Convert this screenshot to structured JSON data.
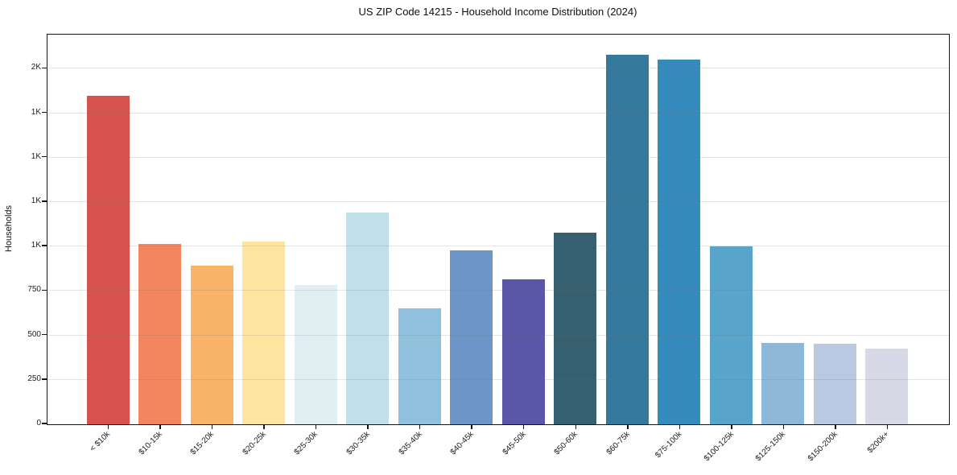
{
  "chart_data": {
    "type": "bar",
    "title": "US ZIP Code 14215 - Household Income Distribution (2024)",
    "xlabel": "",
    "ylabel": "Households",
    "categories": [
      "< $10k",
      "$10-15k",
      "$15-20k",
      "$20-25k",
      "$25-30k",
      "$30-35k",
      "$35-40k",
      "$40-45k",
      "$45-50k",
      "$50-60k",
      "$60-75k",
      "$75-100k",
      "$100-125k",
      "$125-150k",
      "$150-200k",
      "$200k+"
    ],
    "values": [
      1845,
      1010,
      890,
      1025,
      780,
      1190,
      650,
      975,
      815,
      1075,
      2075,
      2050,
      1000,
      455,
      450,
      425
    ],
    "bar_colors": [
      "#d6524c",
      "#f2875f",
      "#f9b469",
      "#fde5a0",
      "#e2eff2",
      "#c0dfe9",
      "#90c1dc",
      "#6d96c8",
      "#5a57a8",
      "#36606f",
      "#35799c",
      "#348bbc",
      "#58a4ca",
      "#8fb7d8",
      "#b9c9e1",
      "#d8d9e6"
    ],
    "ylim": [
      0,
      2187
    ],
    "yticks": [
      {
        "value": 0,
        "label": "0"
      },
      {
        "value": 250,
        "label": "250"
      },
      {
        "value": 500,
        "label": "500"
      },
      {
        "value": 750,
        "label": "750"
      },
      {
        "value": 1000,
        "label": "1K"
      },
      {
        "value": 1250,
        "label": "1K"
      },
      {
        "value": 1500,
        "label": "1K"
      },
      {
        "value": 1750,
        "label": "1K"
      },
      {
        "value": 2000,
        "label": "2K"
      }
    ],
    "grid": "horizontal-only",
    "legend": "none",
    "x_tick_rotation_deg": 45
  },
  "colors": {
    "background": "#ffffff",
    "spine": "#141414",
    "gridline": "#e9e9e9",
    "text": "#1a1a1a"
  }
}
